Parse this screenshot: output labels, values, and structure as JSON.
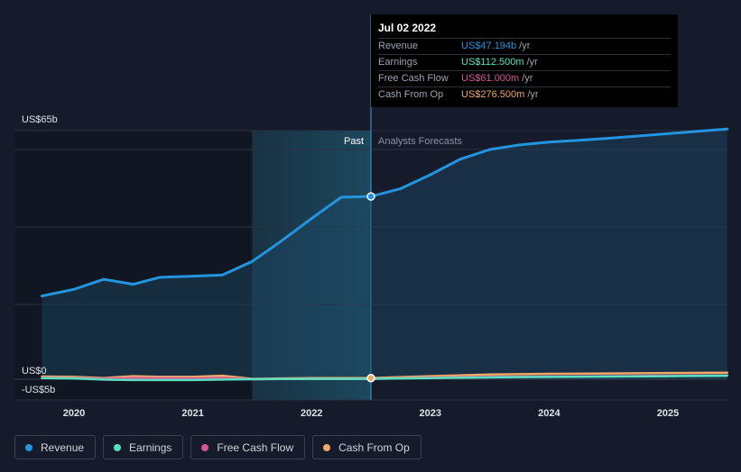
{
  "chart_data": {
    "type": "line",
    "x_ticks": [
      "2020",
      "2021",
      "2022",
      "2023",
      "2024",
      "2025"
    ],
    "y_axis_labels": {
      "top": "US$65b",
      "zero": "US$0",
      "bottom": "-US$5b"
    },
    "ylim": [
      -5,
      65
    ],
    "xlim": [
      2019.73,
      2025.5
    ],
    "region_labels": {
      "past": "Past",
      "forecast": "Analysts Forecasts"
    },
    "divider_x": 2022.5,
    "series": [
      {
        "name": "Revenue",
        "color": "#2394df",
        "x": [
          2019.73,
          2020.0,
          2020.25,
          2020.5,
          2020.72,
          2021.0,
          2021.25,
          2021.5,
          2021.75,
          2022.0,
          2022.25,
          2022.5,
          2022.75,
          2023.0,
          2023.25,
          2023.5,
          2023.75,
          2024.0,
          2024.25,
          2024.5,
          2024.75,
          2025.0,
          2025.25,
          2025.5
        ],
        "values": [
          21.5,
          23.2,
          25.8,
          24.5,
          26.3,
          26.6,
          26.9,
          30.4,
          35.8,
          41.5,
          47.0,
          47.194,
          49.2,
          52.8,
          56.8,
          59.3,
          60.5,
          61.2,
          61.7,
          62.2,
          62.8,
          63.4,
          64.0,
          64.6
        ]
      },
      {
        "name": "Earnings",
        "color": "#58e1c1",
        "x": [
          2019.73,
          2020.0,
          2020.25,
          2020.5,
          2020.72,
          2021.0,
          2021.25,
          2021.5,
          2021.75,
          2022.0,
          2022.25,
          2022.5,
          2023.0,
          2023.5,
          2024.0,
          2024.5,
          2025.0,
          2025.5
        ],
        "values": [
          0.3,
          0.2,
          -0.1,
          -0.2,
          -0.2,
          -0.2,
          -0.1,
          0.0,
          0.05,
          0.1,
          0.1,
          0.1125,
          0.3,
          0.5,
          0.6,
          0.7,
          0.8,
          0.9
        ]
      },
      {
        "name": "Free Cash Flow",
        "color": "#d6559a",
        "x": [
          2019.73,
          2020.0,
          2020.25,
          2020.5,
          2020.72,
          2021.0,
          2021.25,
          2021.5,
          2021.75,
          2022.0,
          2022.25,
          2022.5,
          2023.0,
          2023.5,
          2024.0,
          2024.5,
          2025.0,
          2025.5
        ],
        "values": [
          0.4,
          0.3,
          0.1,
          0.3,
          0.2,
          0.2,
          0.3,
          0.0,
          0.05,
          0.1,
          0.1,
          0.061,
          0.4,
          0.6,
          0.7,
          0.8,
          0.9,
          1.0
        ]
      },
      {
        "name": "Cash From Op",
        "color": "#f0a868",
        "x": [
          2019.73,
          2020.0,
          2020.25,
          2020.5,
          2020.72,
          2021.0,
          2021.25,
          2021.5,
          2021.75,
          2022.0,
          2022.25,
          2022.5,
          2023.0,
          2023.5,
          2024.0,
          2024.5,
          2025.0,
          2025.5
        ],
        "values": [
          0.7,
          0.6,
          0.3,
          0.8,
          0.6,
          0.6,
          0.9,
          0.1,
          0.2,
          0.3,
          0.3,
          0.2765,
          0.8,
          1.2,
          1.4,
          1.5,
          1.6,
          1.7
        ]
      }
    ]
  },
  "tooltip": {
    "date": "Jul 02 2022",
    "rows": [
      {
        "label": "Revenue",
        "value": "US$47.194b",
        "unit": "/yr",
        "color": "#2394df"
      },
      {
        "label": "Earnings",
        "value": "US$112.500m",
        "unit": "/yr",
        "color": "#58e1c1"
      },
      {
        "label": "Free Cash Flow",
        "value": "US$61.000m",
        "unit": "/yr",
        "color": "#d6559a"
      },
      {
        "label": "Cash From Op",
        "value": "US$276.500m",
        "unit": "/yr",
        "color": "#f0a868"
      }
    ]
  },
  "legend": [
    {
      "label": "Revenue",
      "color": "#2394df"
    },
    {
      "label": "Earnings",
      "color": "#58e1c1"
    },
    {
      "label": "Free Cash Flow",
      "color": "#d6559a"
    },
    {
      "label": "Cash From Op",
      "color": "#f0a868"
    }
  ]
}
